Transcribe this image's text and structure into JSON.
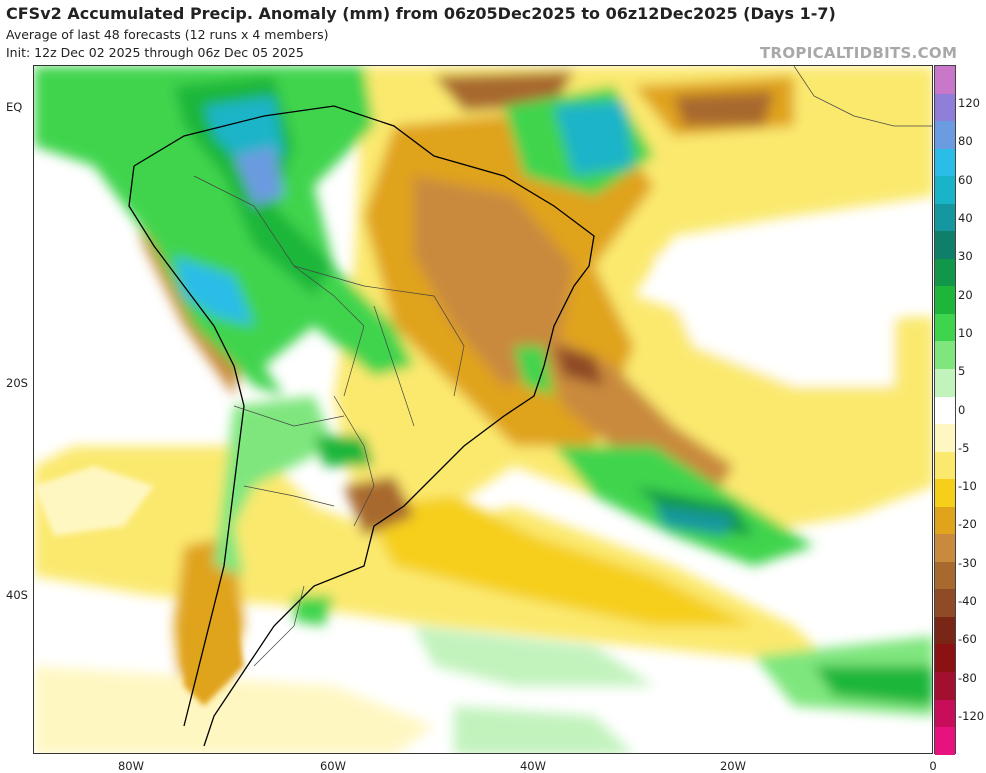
{
  "header": {
    "title": "CFSv2 Accumulated Precip. Anomaly (mm) from 06z05Dec2025 to 06z12Dec2025 (Days 1-7)",
    "subtitle": "Average of last 48 forecasts (12 runs x 4 members)",
    "init": "Init: 12z Dec 02 2025 through 06z Dec 05 2025",
    "credit": "TROPICALTIDBITS.COM"
  },
  "axes": {
    "lat_labels": [
      "EQ",
      "20S",
      "40S"
    ],
    "lon_labels": [
      "80W",
      "60W",
      "40W",
      "20W",
      "0"
    ]
  },
  "colorbar": {
    "labels": [
      "120",
      "80",
      "60",
      "40",
      "30",
      "20",
      "10",
      "5",
      "0",
      "-5",
      "-10",
      "-20",
      "-30",
      "-40",
      "-60",
      "-80",
      "-120"
    ],
    "colors": [
      "#c978c9",
      "#8f7fd8",
      "#6b9be0",
      "#29bde8",
      "#1ab4c8",
      "#15979f",
      "#0f7f6a",
      "#11974a",
      "#1db63b",
      "#3fd44d",
      "#7fe67e",
      "#c2f3bd",
      "#ffffff",
      "#fff7c2",
      "#fbe96e",
      "#f5cf1a",
      "#e0a31c",
      "#c98a3d",
      "#a8692f",
      "#8f4a26",
      "#7a2617",
      "#8a1212",
      "#a3102f",
      "#c80e5a",
      "#e8127e"
    ]
  },
  "map": {
    "region": "South America and the South Atlantic"
  }
}
